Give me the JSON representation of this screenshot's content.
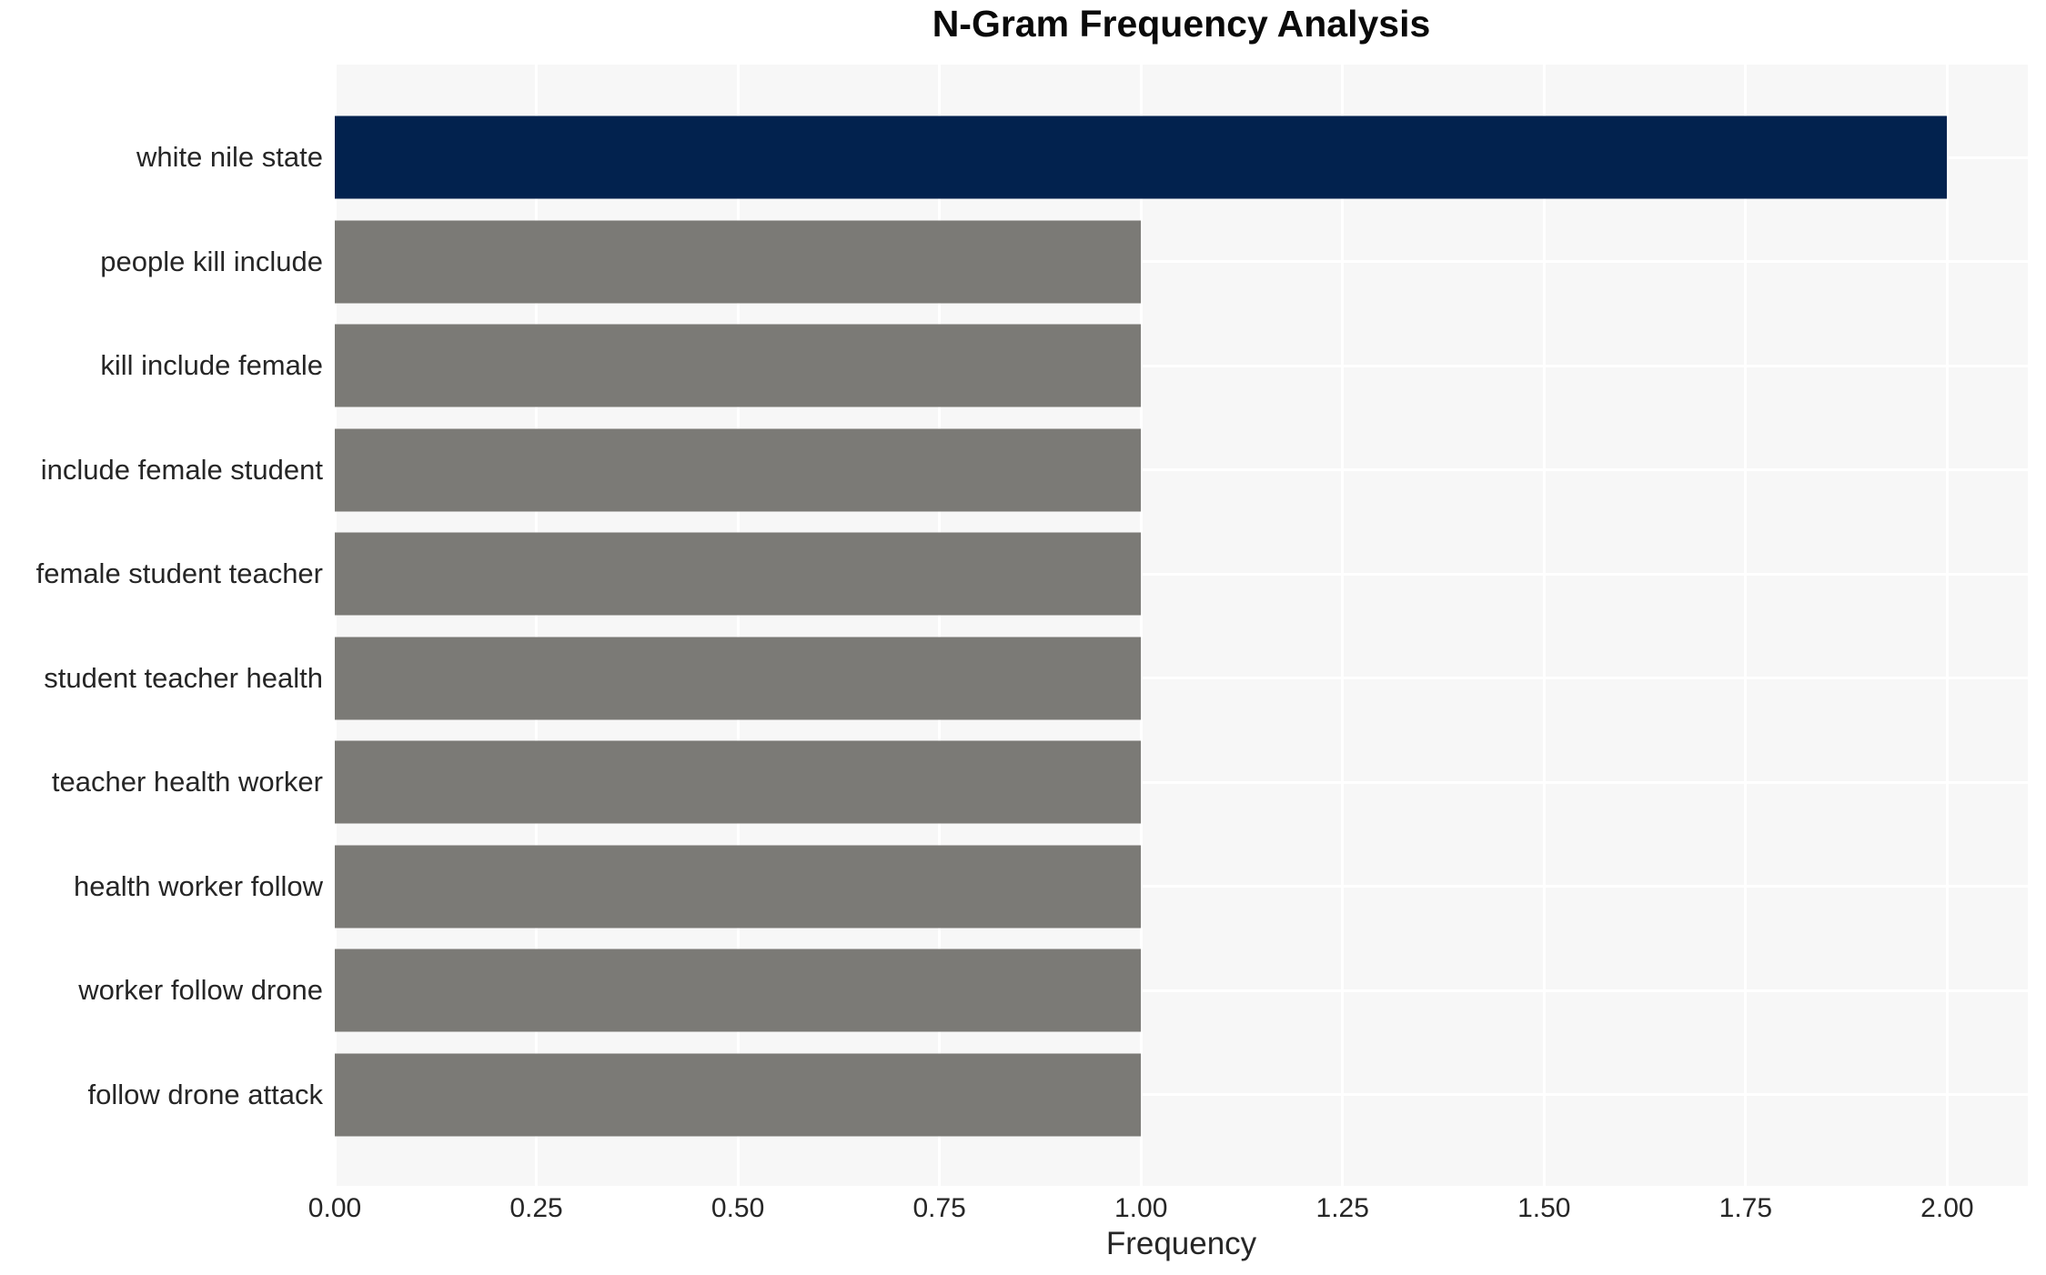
{
  "chart_data": {
    "type": "bar",
    "orientation": "horizontal",
    "title": "N-Gram Frequency Analysis",
    "xlabel": "Frequency",
    "ylabel": "",
    "categories": [
      "white nile state",
      "people kill include",
      "kill include female",
      "include female student",
      "female student teacher",
      "student teacher health",
      "teacher health worker",
      "health worker follow",
      "worker follow drone",
      "follow drone attack"
    ],
    "values": [
      2,
      1,
      1,
      1,
      1,
      1,
      1,
      1,
      1,
      1
    ],
    "xlim": [
      0,
      2.1
    ],
    "xticks": [
      {
        "value": 0.0,
        "label": "0.00"
      },
      {
        "value": 0.25,
        "label": "0.25"
      },
      {
        "value": 0.5,
        "label": "0.50"
      },
      {
        "value": 0.75,
        "label": "0.75"
      },
      {
        "value": 1.0,
        "label": "1.00"
      },
      {
        "value": 1.25,
        "label": "1.25"
      },
      {
        "value": 1.5,
        "label": "1.50"
      },
      {
        "value": 1.75,
        "label": "1.75"
      },
      {
        "value": 2.0,
        "label": "2.00"
      }
    ],
    "bar_colors": [
      "#02224e",
      "#7b7a76",
      "#7b7a76",
      "#7b7a76",
      "#7b7a76",
      "#7b7a76",
      "#7b7a76",
      "#7b7a76",
      "#7b7a76",
      "#7b7a76"
    ],
    "grid": {
      "vertical": true,
      "horizontal": true
    },
    "legend": "none",
    "colors": {
      "highlight_bar": "#02224e",
      "default_bar": "#7b7a76",
      "plot_background": "#f7f7f7",
      "gridline": "#ffffff",
      "tick_text": "#262626",
      "title_text": "#0a0a0a",
      "page_background": "#ffffff"
    }
  }
}
